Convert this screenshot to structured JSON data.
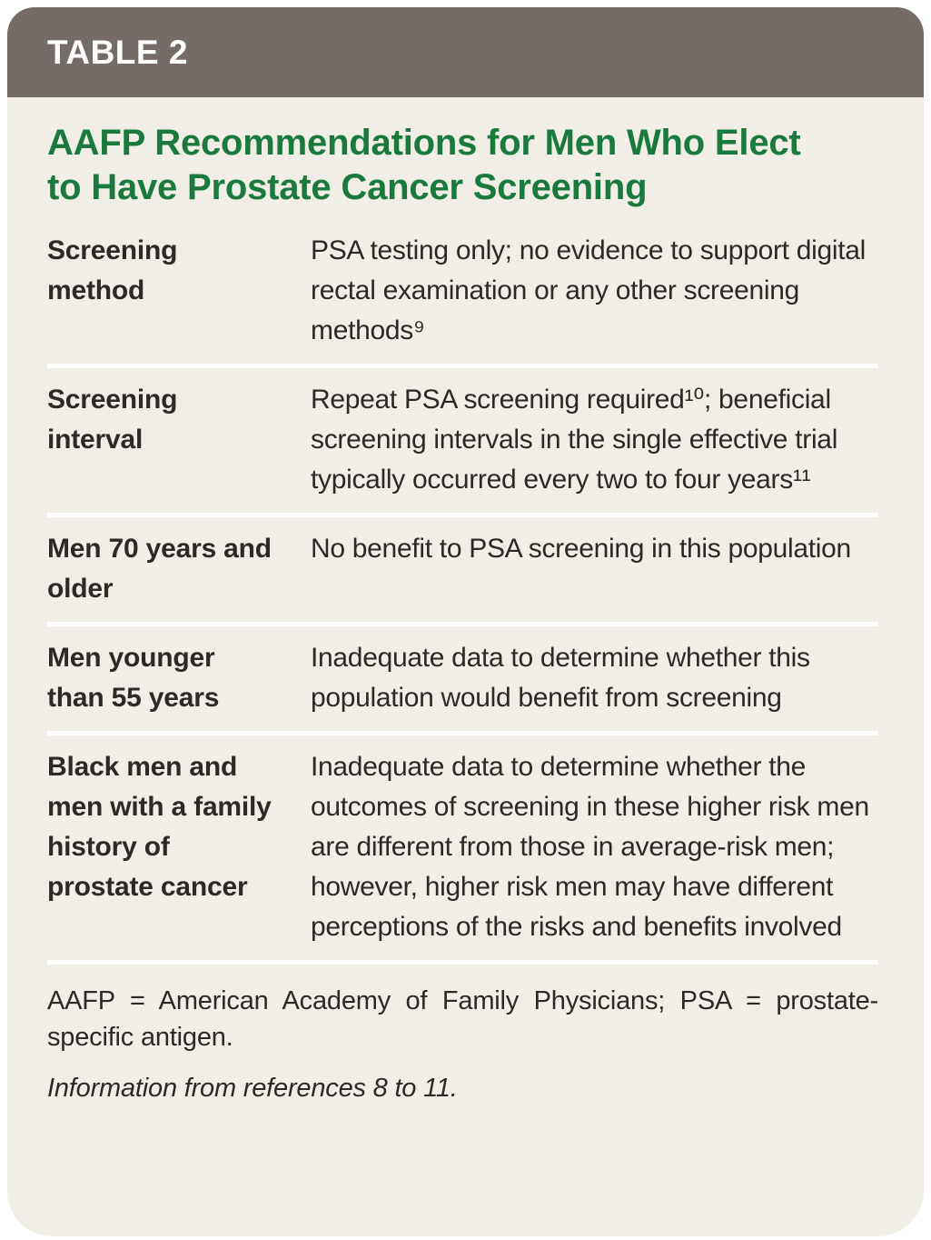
{
  "header": {
    "label": "TABLE 2"
  },
  "title": "AAFP Recommendations for Men Who Elect\nto Have Prostate Cancer Screening",
  "rows": [
    {
      "label": "Screening method",
      "text": "PSA testing only; no evidence to support digital rectal examination or any other screening methods⁹"
    },
    {
      "label": "Screening interval",
      "text": "Repeat PSA screening required¹⁰; beneficial screening intervals in the single effective trial typically occurred every two to four years¹¹"
    },
    {
      "label": "Men 70 years and older",
      "text": "No benefit to PSA screening in this population"
    },
    {
      "label": "Men younger than 55 years",
      "text": "Inadequate data to determine whether this population would benefit from screening"
    },
    {
      "label": "Black men and men with a family history of prostate cancer",
      "text": "Inadequate data to determine whether the outcomes of screening in these higher risk men are different from those in average-risk men; however, higher risk men may have different perceptions of the risks and benefits involved"
    }
  ],
  "footnotes": {
    "abbreviations": "AAFP = American Academy of Family Physicians; PSA = prostate-specific antigen.",
    "source": "Information from references 8 to 11."
  },
  "colors": {
    "header_bg": "#756c68",
    "title_green": "#1a7a3e",
    "panel_bg": "#f0eee6",
    "text": "#2d2a26",
    "divider": "#ffffff"
  }
}
